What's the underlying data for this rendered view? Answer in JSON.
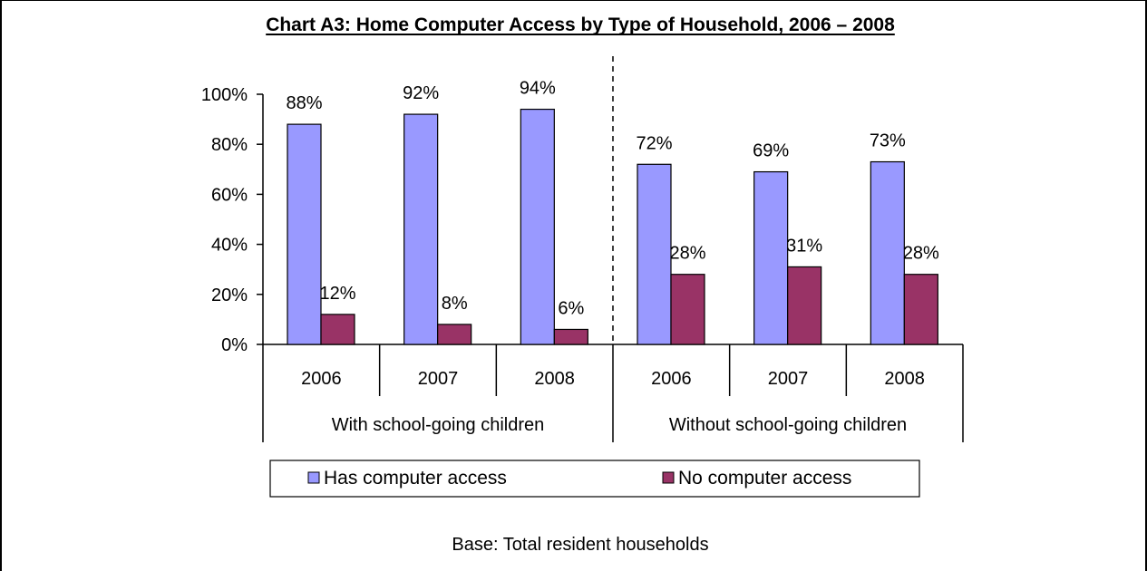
{
  "chart_data": {
    "type": "bar",
    "title": "Chart A3: Home Computer Access by Type of Household, 2006 – 2008",
    "footnote": "Base:  Total resident households",
    "ylim": [
      0,
      100
    ],
    "y_ticks": [
      0,
      20,
      40,
      60,
      80,
      100
    ],
    "y_tick_labels": [
      "0%",
      "20%",
      "40%",
      "60%",
      "80%",
      "100%"
    ],
    "categories": [
      "2006",
      "2007",
      "2008",
      "2006",
      "2007",
      "2008"
    ],
    "groups": [
      {
        "label": "With school-going children",
        "span": [
          0,
          2
        ]
      },
      {
        "label": "Without school-going children",
        "span": [
          3,
          5
        ]
      }
    ],
    "series": [
      {
        "name": "Has computer access",
        "color": "#9999ff",
        "values": [
          88,
          92,
          94,
          72,
          69,
          73
        ],
        "labels": [
          "88%",
          "92%",
          "94%",
          "72%",
          "69%",
          "73%"
        ]
      },
      {
        "name": "No computer access",
        "color": "#993366",
        "values": [
          12,
          8,
          6,
          28,
          31,
          28
        ],
        "labels": [
          "12%",
          "8%",
          "6%",
          "28%",
          "31%",
          "28%"
        ]
      }
    ],
    "grid": false,
    "group_separator": "dashed",
    "legend_position": "bottom"
  }
}
